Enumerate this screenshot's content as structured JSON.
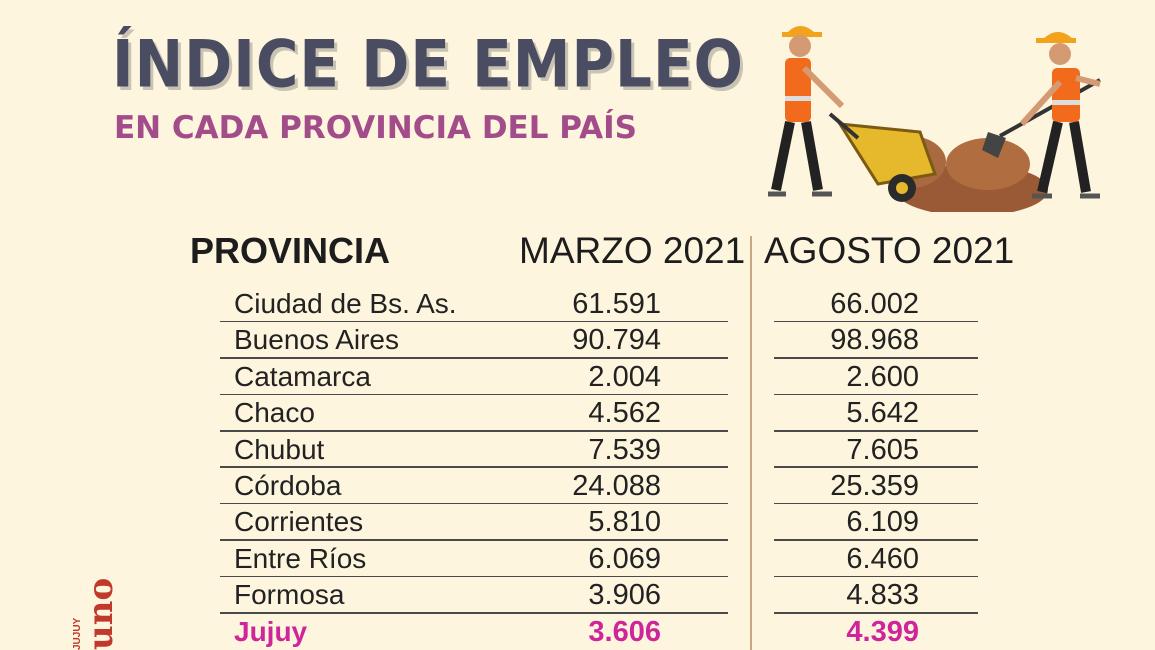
{
  "header": {
    "title": "ÍNDICE DE EMPLEO",
    "subtitle": "EN CADA PROVINCIA DEL PAÍS"
  },
  "logo": {
    "brand": "uno",
    "region": "JUJUY"
  },
  "colors": {
    "title": "#4a4c61",
    "subtitle": "#a34c8a",
    "highlight": "#d0249a",
    "background": "#fdf5de"
  },
  "chart_data": {
    "type": "table",
    "columns": [
      "PROVINCIA",
      "MARZO 2021",
      "AGOSTO 2021"
    ],
    "rows": [
      [
        "Ciudad de Bs. As.",
        "61.591",
        "66.002"
      ],
      [
        "Buenos Aires",
        "90.794",
        "98.968"
      ],
      [
        "Catamarca",
        "2.004",
        "2.600"
      ],
      [
        "Chaco",
        "4.562",
        "5.642"
      ],
      [
        "Chubut",
        "7.539",
        "7.605"
      ],
      [
        "Córdoba",
        "24.088",
        "25.359"
      ],
      [
        "Corrientes",
        "5.810",
        "6.109"
      ],
      [
        "Entre Ríos",
        "6.069",
        "6.460"
      ],
      [
        "Formosa",
        "3.906",
        "4.833"
      ],
      [
        "Jujuy",
        "3.606",
        "4.399"
      ]
    ],
    "highlighted_row": "Jujuy"
  }
}
